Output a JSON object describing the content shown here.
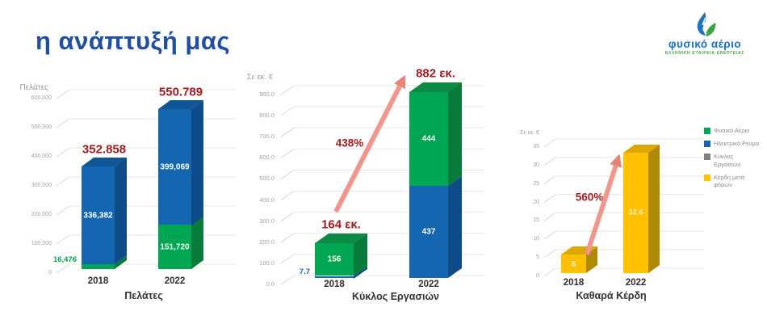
{
  "slide": {
    "title": "η ανάπτυξή μας"
  },
  "logo": {
    "name": "φυσικό αέριο",
    "subtitle": "ΕΛΛΗΝΙΚΗ ΕΤΑΙΡΕΙΑ ΕΝΕΡΓΕΙΑΣ"
  },
  "colors": {
    "title_blue": "#1F4FA5",
    "value_red": "#A11B20",
    "arrow_pink": "#F2958D",
    "logo_blue": "#1B74BC",
    "logo_green": "#3FA443"
  },
  "palette": {
    "green": {
      "front": "#00A651",
      "side": "#077A3C",
      "top": "#0B8A43"
    },
    "blue": {
      "front": "#1566B1",
      "side": "#0D4C89",
      "top": "#0F5697"
    },
    "yellow": {
      "front": "#FFC003",
      "side": "#AF8A05",
      "top": "#DFA800"
    }
  },
  "legend": {
    "items": [
      {
        "label": "Φυσικό Αέριο",
        "color": "#00A651"
      },
      {
        "label": "Ηλεκτρικό Ρεύμα",
        "color": "#1566B1"
      },
      {
        "label": "Κύκλος Εργασιών",
        "color": "#808080"
      },
      {
        "label": "Κέρδη μετά φόρων",
        "color": "#FFC003"
      }
    ]
  },
  "chart_data": [
    {
      "type": "bar",
      "stacked": true,
      "title": "Πελάτες",
      "ylabel": "Πελάτες",
      "ymax": 600000,
      "yticks": [
        "600,000",
        "500,000",
        "400,000",
        "300,000",
        "200,000",
        "100,000",
        "0"
      ],
      "categories": [
        "2018",
        "2022"
      ],
      "bars": [
        {
          "category": "2018",
          "total": 352858,
          "total_label": "352.858",
          "segments": [
            {
              "name": "Φυσικό Αέριο",
              "value": 16476,
              "label": "16,476",
              "color": "green",
              "label_outside": true
            },
            {
              "name": "Ηλεκτρικό Ρεύμα",
              "value": 336382,
              "label": "336,382",
              "color": "blue"
            }
          ]
        },
        {
          "category": "2022",
          "total": 550789,
          "total_label": "550.789",
          "segments": [
            {
              "name": "Φυσικό Αέριο",
              "value": 151720,
              "label": "151,720",
              "color": "green"
            },
            {
              "name": "Ηλεκτρικό Ρεύμα",
              "value": 399069,
              "label": "399,069",
              "color": "blue"
            }
          ]
        }
      ]
    },
    {
      "type": "bar",
      "stacked": true,
      "title": "Κύκλος Εργασιών",
      "ylabel": "Σε εκ. €",
      "ymax": 900,
      "yticks": [
        "900.0",
        "800.0",
        "700.0",
        "600.0",
        "500.0",
        "400.0",
        "300.0",
        "200.0",
        "100.0",
        "0.0"
      ],
      "categories": [
        "2018",
        "2022"
      ],
      "growth": "438%",
      "bars": [
        {
          "category": "2018",
          "total": 164,
          "total_label": "164 εκ.",
          "segments": [
            {
              "name": "Ηλεκτρικό Ρεύμα",
              "value": 7.7,
              "label": "7.7",
              "color": "blue",
              "label_outside": true
            },
            {
              "name": "Φυσικό Αέριο",
              "value": 156,
              "label": "156",
              "color": "green"
            }
          ]
        },
        {
          "category": "2022",
          "total": 882,
          "total_label": "882 εκ.",
          "segments": [
            {
              "name": "Ηλεκτρικό Ρεύμα",
              "value": 437,
              "label": "437",
              "color": "blue"
            },
            {
              "name": "Φυσικό Αέριο",
              "value": 444,
              "label": "444",
              "color": "green"
            }
          ]
        }
      ]
    },
    {
      "type": "bar",
      "stacked": false,
      "title": "Καθαρά Κέρδη",
      "ylabel": "Σε εκ. €",
      "ymax": 35,
      "yticks": [
        "35",
        "30",
        "25",
        "20",
        "15",
        "10",
        "5",
        "0"
      ],
      "categories": [
        "2018",
        "2022"
      ],
      "growth": "560%",
      "bars": [
        {
          "category": "2018",
          "segments": [
            {
              "name": "Κέρδη μετά φόρων",
              "value": 5,
              "label": "5",
              "color": "yellow"
            }
          ]
        },
        {
          "category": "2022",
          "segments": [
            {
              "name": "Κέρδη μετά φόρων",
              "value": 32.6,
              "label": "32.6",
              "color": "yellow",
              "label_color": "#FFF2B8"
            }
          ]
        }
      ]
    }
  ]
}
